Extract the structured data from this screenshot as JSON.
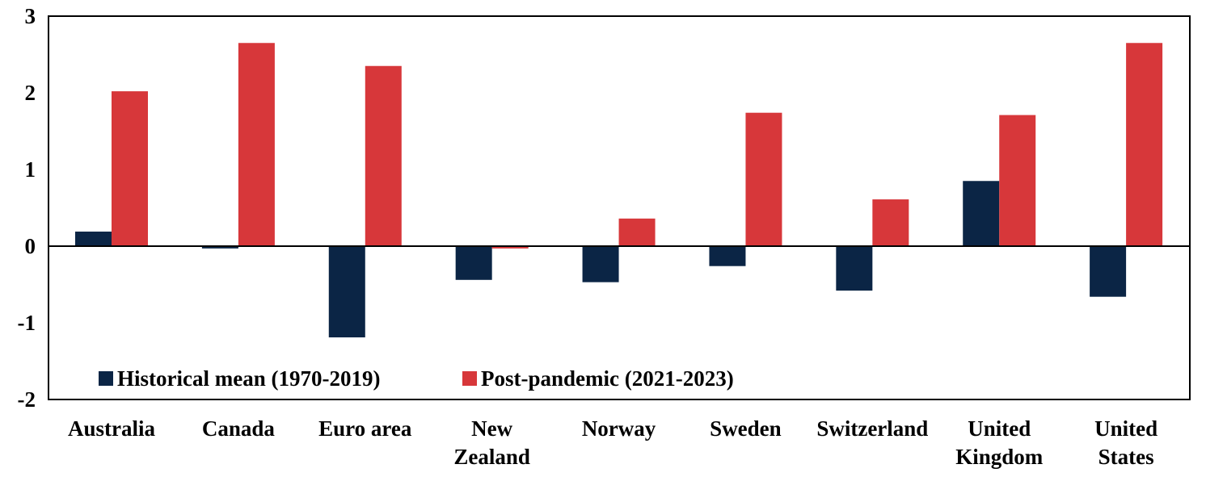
{
  "chart_data": {
    "type": "bar",
    "title": "",
    "xlabel": "",
    "ylabel": "",
    "ylim": [
      -2,
      3
    ],
    "yticks": [
      3,
      2,
      1,
      0,
      -1,
      -2
    ],
    "grid": false,
    "legend_position": "bottom-left-inside",
    "categories": [
      "Australia",
      "Canada",
      "Euro area",
      "New Zealand",
      "Norway",
      "Sweden",
      "Switzerland",
      "United Kingdom",
      "United States"
    ],
    "category_label_lines": [
      [
        "Australia"
      ],
      [
        "Canada"
      ],
      [
        "Euro area"
      ],
      [
        "New",
        "Zealand"
      ],
      [
        "Norway"
      ],
      [
        "Sweden"
      ],
      [
        "Switzerland"
      ],
      [
        "United",
        "Kingdom"
      ],
      [
        "United",
        "States"
      ]
    ],
    "series": [
      {
        "name": "Historical mean (1970-2019)",
        "color": "#0b2545",
        "values": [
          0.19,
          -0.03,
          -1.19,
          -0.44,
          -0.47,
          -0.26,
          -0.58,
          0.85,
          -0.66
        ]
      },
      {
        "name": "Post-pandemic (2021-2023)",
        "color": "#d7373a",
        "values": [
          2.02,
          2.65,
          2.35,
          -0.03,
          0.36,
          1.74,
          0.61,
          1.71,
          2.65
        ]
      }
    ]
  }
}
